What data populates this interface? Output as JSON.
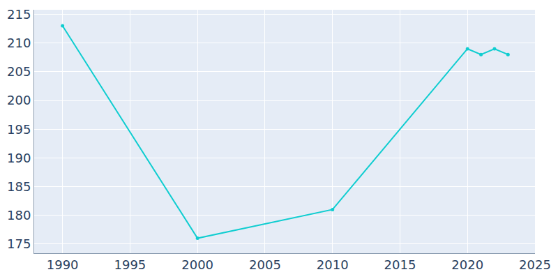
{
  "chart_data": {
    "type": "line",
    "x": [
      1990,
      2000,
      2010,
      2020,
      2021,
      2022,
      2023
    ],
    "values": [
      213,
      176,
      181,
      209,
      208,
      209,
      208
    ],
    "color": "#0fcdd0",
    "marker": "circle",
    "xlim": [
      1987.9,
      2025
    ],
    "xticks": [
      1990,
      1995,
      2000,
      2005,
      2010,
      2015,
      2020,
      2025
    ],
    "ylim": [
      173.4,
      215.8
    ],
    "yticks": [
      175,
      180,
      185,
      190,
      195,
      200,
      205,
      210,
      215
    ],
    "grid": true
  }
}
